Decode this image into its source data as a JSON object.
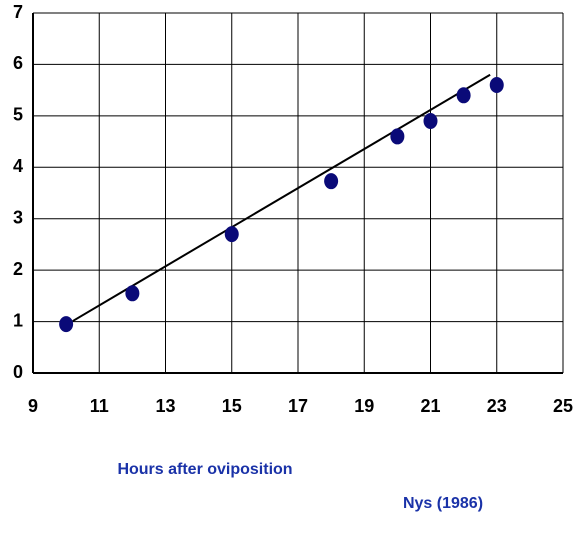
{
  "chart_data": {
    "type": "scatter",
    "x_label": "Hours after oviposition",
    "source": "Nys (1986)",
    "text_color": "#1a32a8",
    "x": [
      10,
      12,
      15,
      18,
      20,
      21,
      22,
      23
    ],
    "values": [
      0.95,
      1.55,
      2.7,
      3.73,
      4.6,
      4.9,
      5.4,
      5.6
    ],
    "color": "#0a0a78",
    "trend_line": {
      "x": [
        10.2,
        22.8
      ],
      "y": [
        1.01,
        5.8
      ],
      "color": "#000000"
    },
    "xlim": [
      9,
      25
    ],
    "xticks": [
      9,
      11,
      13,
      15,
      17,
      19,
      21,
      23,
      25
    ],
    "ylim": [
      0,
      7
    ],
    "yticks": [
      0,
      1,
      2,
      3,
      4,
      5,
      6,
      7
    ],
    "grid": true
  }
}
